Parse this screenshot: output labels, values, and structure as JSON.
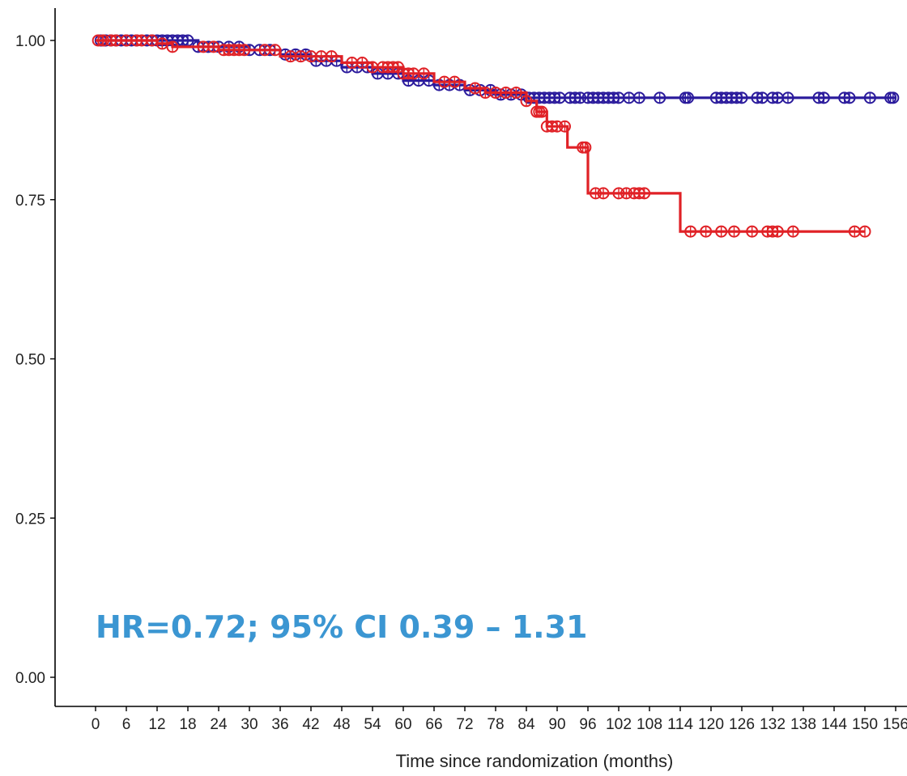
{
  "chart_data": {
    "type": "line",
    "title": "",
    "xlabel": "Time since randomization (months)",
    "ylabel": "",
    "xlim": [
      0,
      156
    ],
    "ylim": [
      0,
      1
    ],
    "xticks": [
      0,
      6,
      12,
      18,
      24,
      30,
      36,
      42,
      48,
      54,
      60,
      66,
      72,
      78,
      84,
      90,
      96,
      102,
      108,
      114,
      120,
      126,
      132,
      138,
      144,
      150,
      156
    ],
    "yticks": [
      "0.00",
      "0.25",
      "0.50",
      "0.75",
      "1.00"
    ],
    "annotation": "HR=0.72; 95% CI 0.39 – 1.31",
    "annotation_color": "#3b96d2",
    "grid": false,
    "series": [
      {
        "color": "#2a1a9c",
        "steps": [
          [
            0,
            1.0
          ],
          [
            10,
            1.0
          ],
          [
            20,
            0.99
          ],
          [
            30,
            0.985
          ],
          [
            36,
            0.978
          ],
          [
            42,
            0.968
          ],
          [
            48,
            0.958
          ],
          [
            54,
            0.948
          ],
          [
            60,
            0.937
          ],
          [
            66,
            0.93
          ],
          [
            72,
            0.922
          ],
          [
            78,
            0.915
          ],
          [
            84,
            0.91
          ],
          [
            156,
            0.91
          ]
        ],
        "censored": [
          1,
          2,
          3,
          4,
          5,
          6,
          7,
          8,
          10,
          11,
          12,
          13,
          14,
          15,
          16,
          17,
          18,
          20,
          22,
          24,
          26,
          28,
          30,
          32,
          34,
          37,
          39,
          41,
          43,
          45,
          47,
          49,
          51,
          53,
          55,
          57,
          59,
          61,
          63,
          65,
          67,
          69,
          71,
          73,
          75,
          77,
          79,
          81,
          83,
          84.5,
          85.5,
          86.5,
          87.5,
          88.5,
          89.5,
          90.5,
          92.5,
          93.5,
          94.5,
          96,
          97,
          98,
          99,
          100,
          101,
          102,
          104,
          106,
          110,
          115,
          115.5,
          121,
          122,
          123,
          124,
          125,
          126,
          129,
          130,
          132,
          133,
          135,
          141,
          142,
          146,
          147,
          151,
          155,
          155.5
        ]
      },
      {
        "color": "#e02126",
        "steps": [
          [
            0,
            1.0
          ],
          [
            12,
            0.995
          ],
          [
            15,
            0.99
          ],
          [
            24,
            0.985
          ],
          [
            36,
            0.975
          ],
          [
            48,
            0.965
          ],
          [
            54,
            0.958
          ],
          [
            60,
            0.948
          ],
          [
            66,
            0.935
          ],
          [
            72,
            0.925
          ],
          [
            76,
            0.918
          ],
          [
            84,
            0.905
          ],
          [
            86,
            0.888
          ],
          [
            88,
            0.865
          ],
          [
            92,
            0.832
          ],
          [
            96,
            0.76
          ],
          [
            114,
            0.7
          ],
          [
            150,
            0.7
          ]
        ],
        "censored": [
          0.5,
          1.5,
          3,
          4,
          6,
          8,
          9,
          11,
          13,
          15,
          21,
          23,
          25,
          26,
          27,
          28,
          29,
          33,
          35,
          38,
          40,
          42,
          44,
          46,
          50,
          52,
          54,
          56,
          57,
          58,
          59,
          60,
          61,
          62,
          64,
          68,
          70,
          74,
          76,
          78,
          80,
          82,
          84,
          86,
          86.5,
          87,
          88,
          89,
          90,
          91.5,
          95,
          95.5,
          97.5,
          99,
          102,
          103.5,
          105,
          106,
          107,
          116,
          119,
          122,
          124.5,
          128,
          131,
          132,
          133,
          136,
          148,
          150
        ]
      }
    ]
  }
}
